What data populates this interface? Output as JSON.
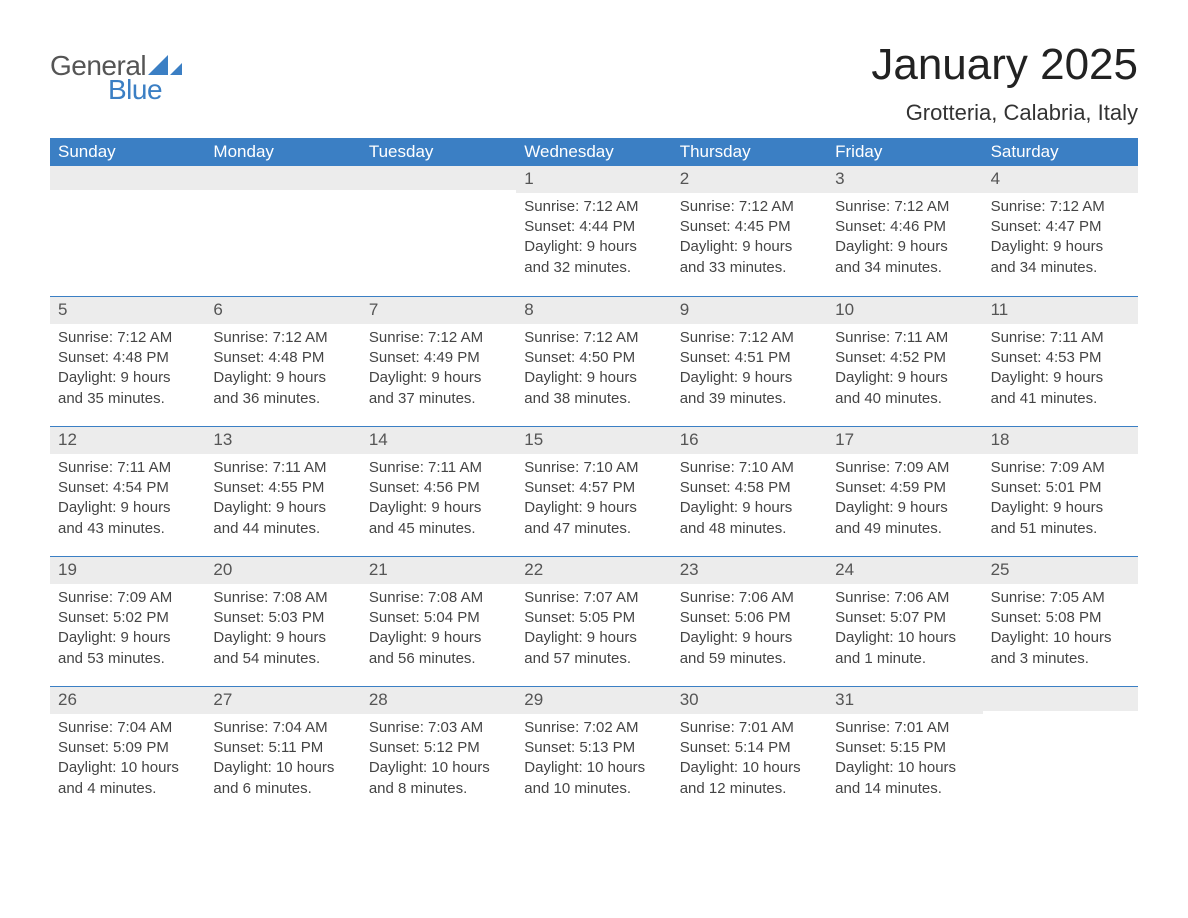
{
  "logo": {
    "text_general": "General",
    "text_blue": "Blue",
    "triangle_color": "#3b7fc4"
  },
  "title": "January 2025",
  "location": "Grotteria, Calabria, Italy",
  "colors": {
    "header_bg": "#3b7fc4",
    "header_text": "#ffffff",
    "daynum_bg": "#ececec",
    "body_text": "#444444",
    "page_bg": "#ffffff",
    "rule": "#3b7fc4"
  },
  "typography": {
    "title_fontsize": 44,
    "location_fontsize": 22,
    "dow_fontsize": 17,
    "daynum_fontsize": 17,
    "body_fontsize": 15
  },
  "days_of_week": [
    "Sunday",
    "Monday",
    "Tuesday",
    "Wednesday",
    "Thursday",
    "Friday",
    "Saturday"
  ],
  "weeks": [
    [
      null,
      null,
      null,
      {
        "n": "1",
        "sr": "Sunrise: 7:12 AM",
        "ss": "Sunset: 4:44 PM",
        "d1": "Daylight: 9 hours",
        "d2": "and 32 minutes."
      },
      {
        "n": "2",
        "sr": "Sunrise: 7:12 AM",
        "ss": "Sunset: 4:45 PM",
        "d1": "Daylight: 9 hours",
        "d2": "and 33 minutes."
      },
      {
        "n": "3",
        "sr": "Sunrise: 7:12 AM",
        "ss": "Sunset: 4:46 PM",
        "d1": "Daylight: 9 hours",
        "d2": "and 34 minutes."
      },
      {
        "n": "4",
        "sr": "Sunrise: 7:12 AM",
        "ss": "Sunset: 4:47 PM",
        "d1": "Daylight: 9 hours",
        "d2": "and 34 minutes."
      }
    ],
    [
      {
        "n": "5",
        "sr": "Sunrise: 7:12 AM",
        "ss": "Sunset: 4:48 PM",
        "d1": "Daylight: 9 hours",
        "d2": "and 35 minutes."
      },
      {
        "n": "6",
        "sr": "Sunrise: 7:12 AM",
        "ss": "Sunset: 4:48 PM",
        "d1": "Daylight: 9 hours",
        "d2": "and 36 minutes."
      },
      {
        "n": "7",
        "sr": "Sunrise: 7:12 AM",
        "ss": "Sunset: 4:49 PM",
        "d1": "Daylight: 9 hours",
        "d2": "and 37 minutes."
      },
      {
        "n": "8",
        "sr": "Sunrise: 7:12 AM",
        "ss": "Sunset: 4:50 PM",
        "d1": "Daylight: 9 hours",
        "d2": "and 38 minutes."
      },
      {
        "n": "9",
        "sr": "Sunrise: 7:12 AM",
        "ss": "Sunset: 4:51 PM",
        "d1": "Daylight: 9 hours",
        "d2": "and 39 minutes."
      },
      {
        "n": "10",
        "sr": "Sunrise: 7:11 AM",
        "ss": "Sunset: 4:52 PM",
        "d1": "Daylight: 9 hours",
        "d2": "and 40 minutes."
      },
      {
        "n": "11",
        "sr": "Sunrise: 7:11 AM",
        "ss": "Sunset: 4:53 PM",
        "d1": "Daylight: 9 hours",
        "d2": "and 41 minutes."
      }
    ],
    [
      {
        "n": "12",
        "sr": "Sunrise: 7:11 AM",
        "ss": "Sunset: 4:54 PM",
        "d1": "Daylight: 9 hours",
        "d2": "and 43 minutes."
      },
      {
        "n": "13",
        "sr": "Sunrise: 7:11 AM",
        "ss": "Sunset: 4:55 PM",
        "d1": "Daylight: 9 hours",
        "d2": "and 44 minutes."
      },
      {
        "n": "14",
        "sr": "Sunrise: 7:11 AM",
        "ss": "Sunset: 4:56 PM",
        "d1": "Daylight: 9 hours",
        "d2": "and 45 minutes."
      },
      {
        "n": "15",
        "sr": "Sunrise: 7:10 AM",
        "ss": "Sunset: 4:57 PM",
        "d1": "Daylight: 9 hours",
        "d2": "and 47 minutes."
      },
      {
        "n": "16",
        "sr": "Sunrise: 7:10 AM",
        "ss": "Sunset: 4:58 PM",
        "d1": "Daylight: 9 hours",
        "d2": "and 48 minutes."
      },
      {
        "n": "17",
        "sr": "Sunrise: 7:09 AM",
        "ss": "Sunset: 4:59 PM",
        "d1": "Daylight: 9 hours",
        "d2": "and 49 minutes."
      },
      {
        "n": "18",
        "sr": "Sunrise: 7:09 AM",
        "ss": "Sunset: 5:01 PM",
        "d1": "Daylight: 9 hours",
        "d2": "and 51 minutes."
      }
    ],
    [
      {
        "n": "19",
        "sr": "Sunrise: 7:09 AM",
        "ss": "Sunset: 5:02 PM",
        "d1": "Daylight: 9 hours",
        "d2": "and 53 minutes."
      },
      {
        "n": "20",
        "sr": "Sunrise: 7:08 AM",
        "ss": "Sunset: 5:03 PM",
        "d1": "Daylight: 9 hours",
        "d2": "and 54 minutes."
      },
      {
        "n": "21",
        "sr": "Sunrise: 7:08 AM",
        "ss": "Sunset: 5:04 PM",
        "d1": "Daylight: 9 hours",
        "d2": "and 56 minutes."
      },
      {
        "n": "22",
        "sr": "Sunrise: 7:07 AM",
        "ss": "Sunset: 5:05 PM",
        "d1": "Daylight: 9 hours",
        "d2": "and 57 minutes."
      },
      {
        "n": "23",
        "sr": "Sunrise: 7:06 AM",
        "ss": "Sunset: 5:06 PM",
        "d1": "Daylight: 9 hours",
        "d2": "and 59 minutes."
      },
      {
        "n": "24",
        "sr": "Sunrise: 7:06 AM",
        "ss": "Sunset: 5:07 PM",
        "d1": "Daylight: 10 hours",
        "d2": "and 1 minute."
      },
      {
        "n": "25",
        "sr": "Sunrise: 7:05 AM",
        "ss": "Sunset: 5:08 PM",
        "d1": "Daylight: 10 hours",
        "d2": "and 3 minutes."
      }
    ],
    [
      {
        "n": "26",
        "sr": "Sunrise: 7:04 AM",
        "ss": "Sunset: 5:09 PM",
        "d1": "Daylight: 10 hours",
        "d2": "and 4 minutes."
      },
      {
        "n": "27",
        "sr": "Sunrise: 7:04 AM",
        "ss": "Sunset: 5:11 PM",
        "d1": "Daylight: 10 hours",
        "d2": "and 6 minutes."
      },
      {
        "n": "28",
        "sr": "Sunrise: 7:03 AM",
        "ss": "Sunset: 5:12 PM",
        "d1": "Daylight: 10 hours",
        "d2": "and 8 minutes."
      },
      {
        "n": "29",
        "sr": "Sunrise: 7:02 AM",
        "ss": "Sunset: 5:13 PM",
        "d1": "Daylight: 10 hours",
        "d2": "and 10 minutes."
      },
      {
        "n": "30",
        "sr": "Sunrise: 7:01 AM",
        "ss": "Sunset: 5:14 PM",
        "d1": "Daylight: 10 hours",
        "d2": "and 12 minutes."
      },
      {
        "n": "31",
        "sr": "Sunrise: 7:01 AM",
        "ss": "Sunset: 5:15 PM",
        "d1": "Daylight: 10 hours",
        "d2": "and 14 minutes."
      },
      null
    ]
  ]
}
